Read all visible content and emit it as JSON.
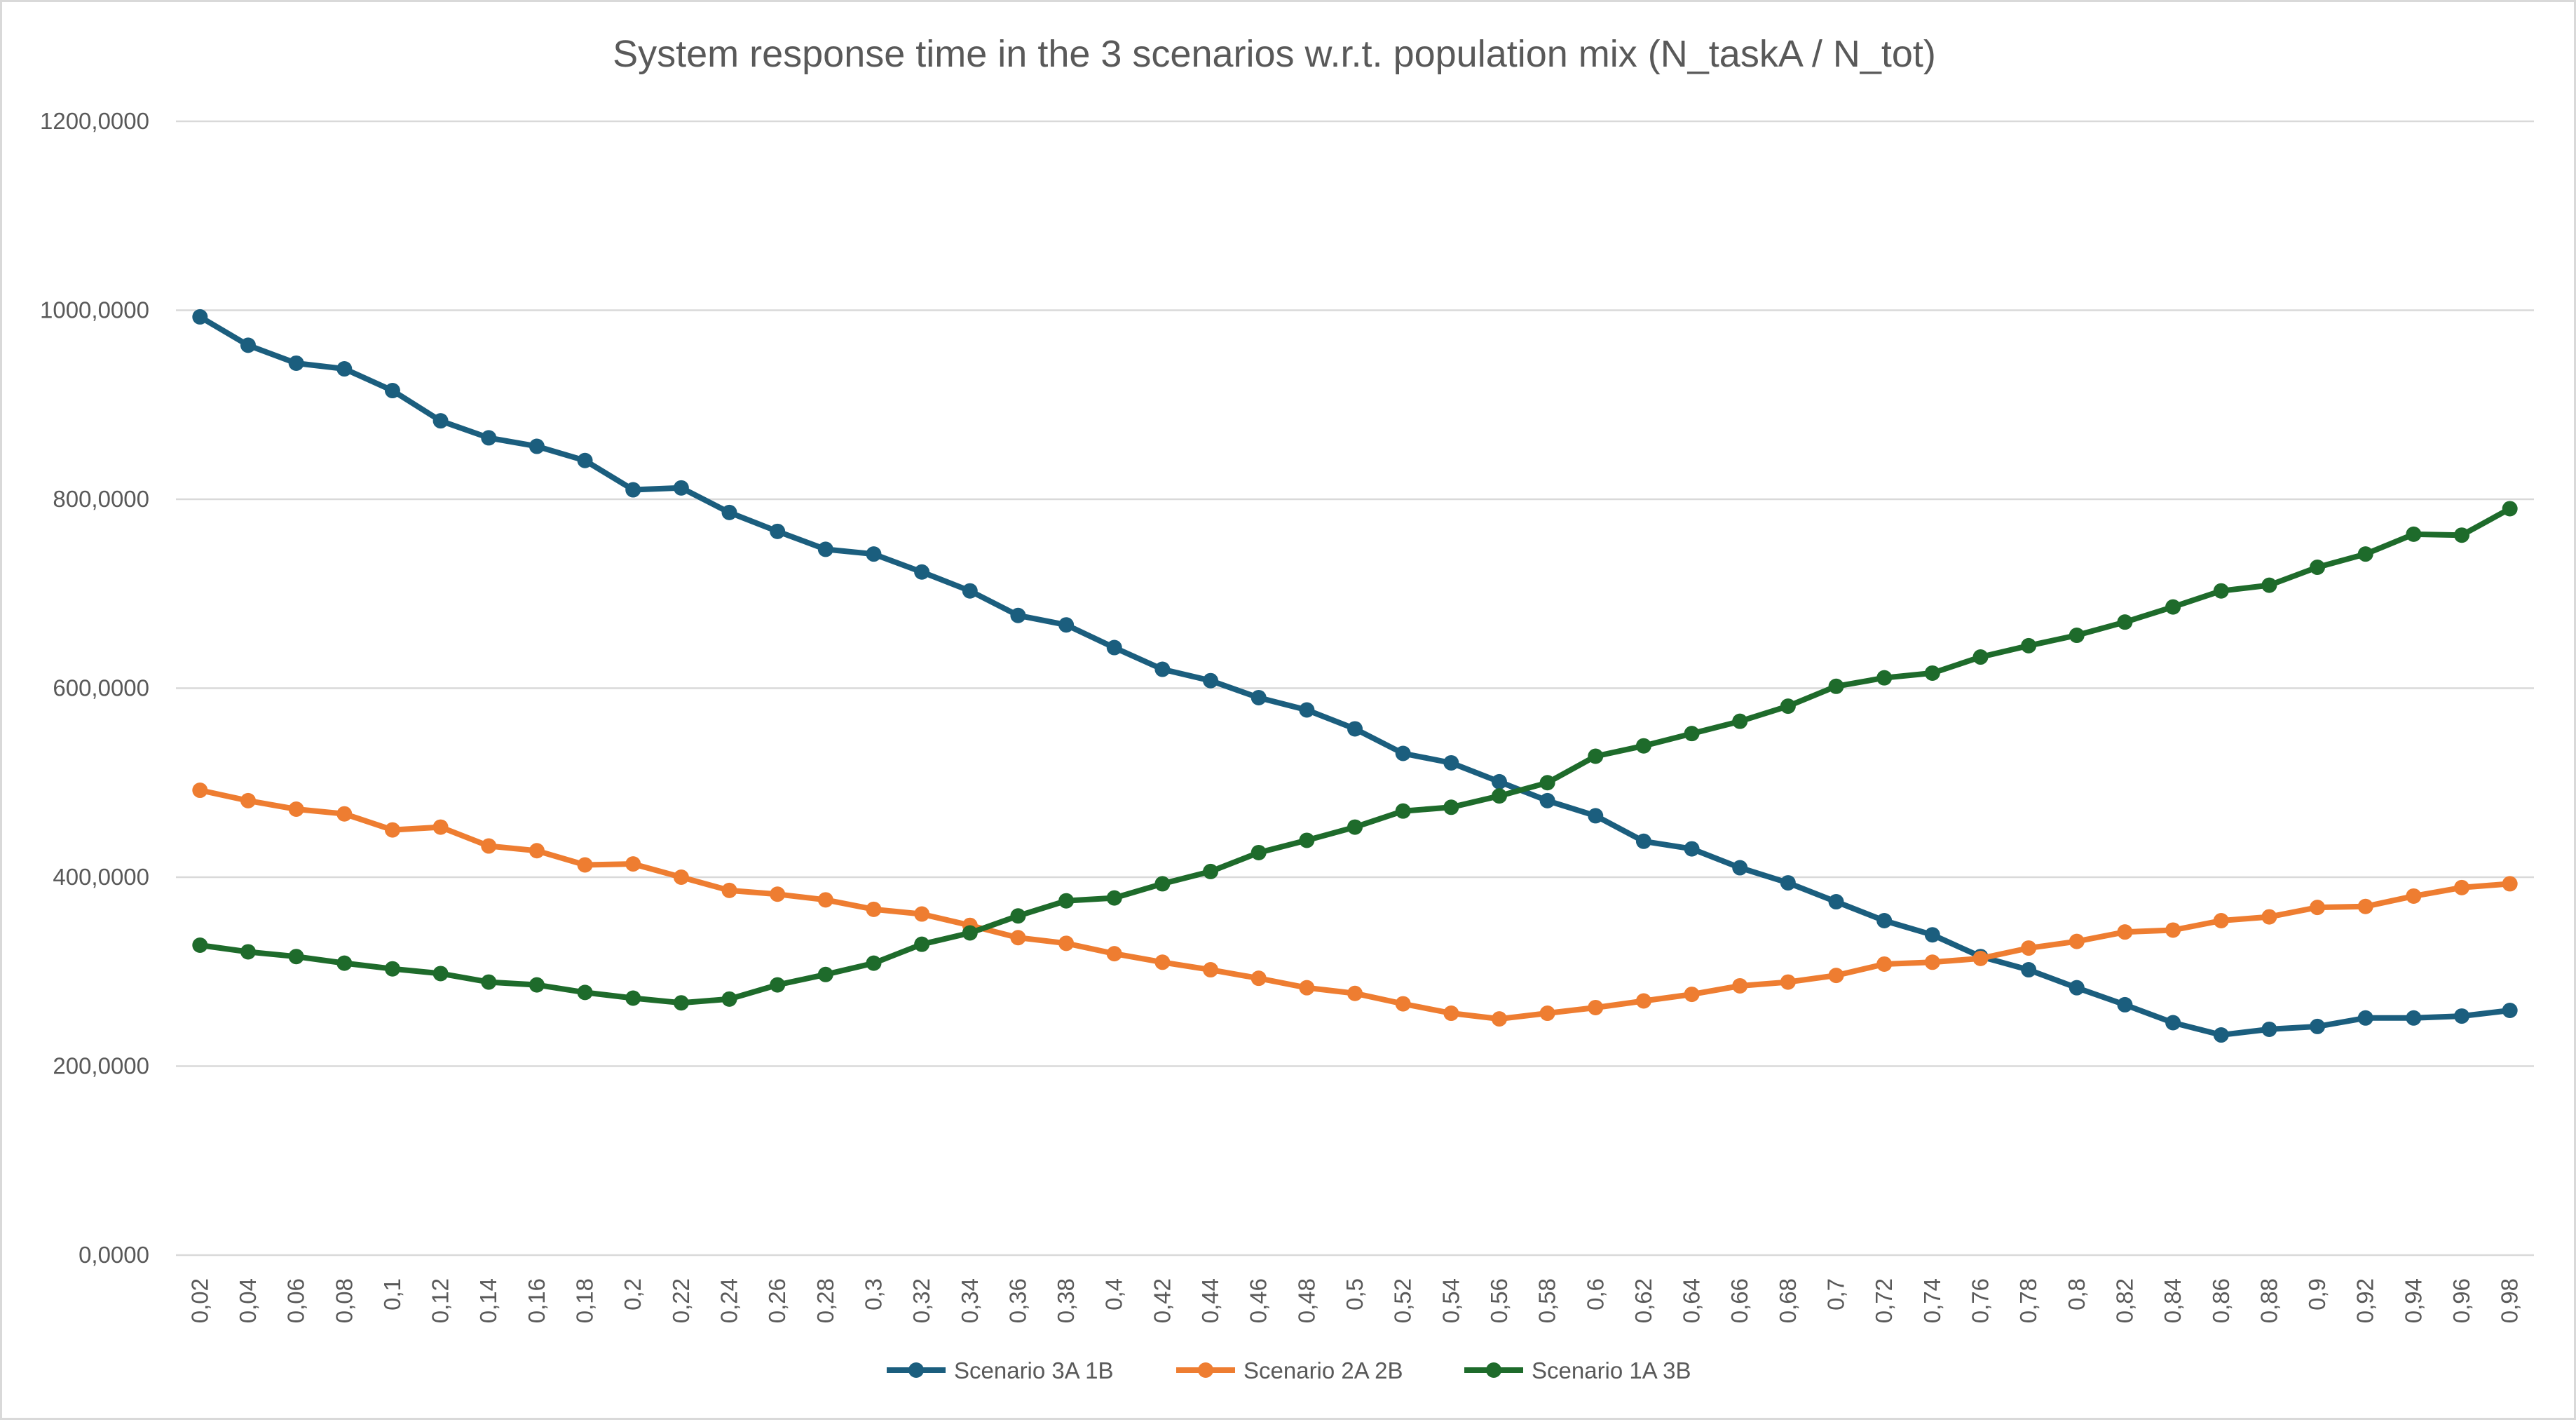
{
  "chart_data": {
    "type": "line",
    "title": "System response time in the 3 scenarios w.r.t. population mix (N_taskA  / N_tot)",
    "xlabel": "",
    "ylabel": "",
    "ylim": [
      0,
      1200
    ],
    "yticks": [
      "0,0000",
      "200,0000",
      "400,0000",
      "600,0000",
      "800,0000",
      "1000,0000",
      "1200,0000"
    ],
    "categories": [
      "0,02",
      "0,04",
      "0,06",
      "0,08",
      "0,1",
      "0,12",
      "0,14",
      "0,16",
      "0,18",
      "0,2",
      "0,22",
      "0,24",
      "0,26",
      "0,28",
      "0,3",
      "0,32",
      "0,34",
      "0,36",
      "0,38",
      "0,4",
      "0,42",
      "0,44",
      "0,46",
      "0,48",
      "0,5",
      "0,52",
      "0,54",
      "0,56",
      "0,58",
      "0,6",
      "0,62",
      "0,64",
      "0,66",
      "0,68",
      "0,7",
      "0,72",
      "0,74",
      "0,76",
      "0,78",
      "0,8",
      "0,82",
      "0,84",
      "0,86",
      "0,88",
      "0,9",
      "0,92",
      "0,94",
      "0,96",
      "0,98"
    ],
    "grid": true,
    "legend_position": "bottom",
    "series": [
      {
        "name": "Scenario 3A 1B",
        "color": "#1b5e7e",
        "values": [
          993,
          963,
          944,
          938,
          915,
          883,
          865,
          856,
          841,
          810,
          812,
          786,
          766,
          747,
          742,
          723,
          703,
          677,
          667,
          643,
          620,
          608,
          590,
          577,
          557,
          531,
          521,
          501,
          481,
          465,
          438,
          430,
          410,
          394,
          374,
          354,
          339,
          316,
          302,
          283,
          265,
          246,
          233,
          239,
          242,
          251,
          251,
          253,
          259
        ]
      },
      {
        "name": "Scenario 2A 2B",
        "color": "#ee7d31",
        "values": [
          492,
          481,
          472,
          467,
          450,
          453,
          433,
          428,
          413,
          414,
          400,
          386,
          382,
          376,
          366,
          361,
          349,
          336,
          330,
          319,
          310,
          302,
          293,
          283,
          277,
          266,
          256,
          250,
          256,
          262,
          269,
          276,
          285,
          289,
          296,
          308,
          310,
          314,
          325,
          332,
          342,
          344,
          354,
          358,
          368,
          369,
          380,
          389,
          393
        ]
      },
      {
        "name": "Scenario 1A 3B",
        "color": "#1e6b2b",
        "values": [
          328,
          321,
          316,
          309,
          303,
          298,
          289,
          286,
          278,
          272,
          267,
          271,
          286,
          297,
          309,
          329,
          341,
          359,
          375,
          378,
          393,
          406,
          426,
          439,
          453,
          470,
          474,
          486,
          500,
          528,
          539,
          552,
          565,
          581,
          602,
          611,
          616,
          633,
          645,
          656,
          670,
          686,
          703,
          709,
          728,
          742,
          763,
          762,
          790
        ]
      }
    ]
  }
}
